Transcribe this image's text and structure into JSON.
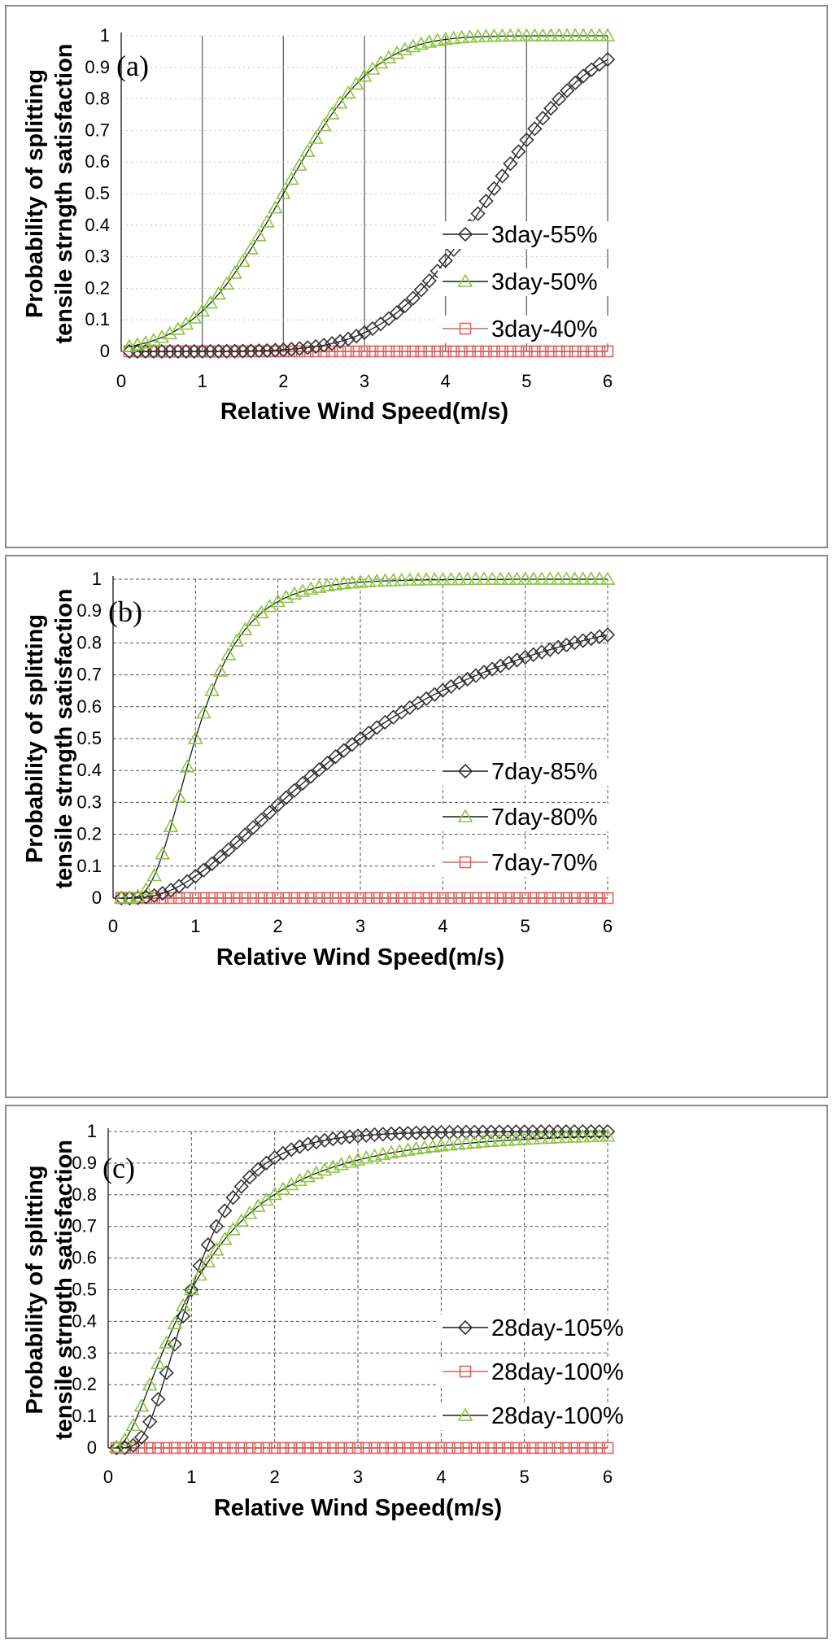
{
  "chart_data": [
    {
      "type": "line",
      "panel_label": "(a)",
      "xlabel": "Relative Wind Speed(m/s)",
      "ylabel": [
        "Probability of splitting",
        "tensile strngth satisfaction"
      ],
      "xlim": [
        0,
        6
      ],
      "ylim": [
        0,
        1
      ],
      "x_ticks": [
        "0",
        "1",
        "2",
        "3",
        "4",
        "5",
        "6"
      ],
      "y_ticks": [
        "0",
        "0.1",
        "0.2",
        "0.3",
        "0.4",
        "0.5",
        "0.6",
        "0.7",
        "0.8",
        "0.9",
        "1"
      ],
      "grid": "vertical-solid",
      "legend": {
        "position": "lower-right",
        "entries": [
          "3day-55%",
          "3day-50%",
          "3day-40%"
        ]
      },
      "series": [
        {
          "name": "3day-55%",
          "marker": "diamond",
          "color": "#333333",
          "curve": {
            "kind": "normal",
            "mu": 4.56,
            "sigma": 1.0
          }
        },
        {
          "name": "3day-50%",
          "marker": "triangle",
          "color": "#8cc63f",
          "curve": {
            "kind": "normal",
            "mu": 2.0,
            "sigma": 0.88
          }
        },
        {
          "name": "3day-40%",
          "marker": "square",
          "color": "#e06060",
          "curve": {
            "kind": "constant",
            "value": 0
          }
        }
      ]
    },
    {
      "type": "line",
      "panel_label": "(b)",
      "xlabel": "Relative Wind Speed(m/s)",
      "ylabel": [
        "Probability of splitting",
        "tensile strngth satisfaction"
      ],
      "xlim": [
        0,
        6
      ],
      "ylim": [
        0,
        1
      ],
      "x_ticks": [
        "0",
        "1",
        "2",
        "3",
        "4",
        "5",
        "6"
      ],
      "y_ticks": [
        "0",
        "0.1",
        "0.2",
        "0.3",
        "0.4",
        "0.5",
        "0.6",
        "0.7",
        "0.8",
        "0.9",
        "1"
      ],
      "grid": "dashed",
      "legend": {
        "position": "center-right",
        "entries": [
          "7day-85%",
          "7day-80%",
          "7day-70%"
        ]
      },
      "series": [
        {
          "name": "7day-85%",
          "marker": "diamond",
          "color": "#333333",
          "curve": {
            "kind": "lognormal",
            "median": 3.0,
            "s": 0.74
          }
        },
        {
          "name": "7day-80%",
          "marker": "triangle",
          "color": "#8cc63f",
          "curve": {
            "kind": "lognormal",
            "median": 1.0,
            "s": 0.47
          }
        },
        {
          "name": "7day-70%",
          "marker": "square",
          "color": "#e06060",
          "curve": {
            "kind": "constant",
            "value": 0
          }
        }
      ]
    },
    {
      "type": "line",
      "panel_label": "(c)",
      "xlabel": "Relative Wind Speed(m/s)",
      "ylabel": [
        "Probability of splitting",
        "tensile strngth satisfaction"
      ],
      "xlim": [
        0,
        6
      ],
      "ylim": [
        0,
        1
      ],
      "x_ticks": [
        "0",
        "1",
        "2",
        "3",
        "4",
        "5",
        "6"
      ],
      "y_ticks": [
        "0",
        "0.1",
        "0.2",
        "0.3",
        "0.4",
        "0.5",
        "0.6",
        "0.7",
        "0.8",
        "0.9",
        "1"
      ],
      "grid": "dashed",
      "legend": {
        "position": "center-right",
        "entries": [
          "28day-105%",
          "28day-100%",
          "28day-100%"
        ]
      },
      "series": [
        {
          "name": "28day-105%",
          "marker": "diamond",
          "color": "#333333",
          "curve": {
            "kind": "lognormal",
            "median": 1.0,
            "s": 0.5
          }
        },
        {
          "name": "28day-100%",
          "marker": "square",
          "color": "#e06060",
          "curve": {
            "kind": "constant",
            "value": 0
          }
        },
        {
          "name": "28day-100%",
          "marker": "triangle",
          "color": "#8cc63f",
          "curve": {
            "kind": "lognormal",
            "median": 1.0,
            "s": 0.82
          }
        }
      ]
    }
  ]
}
